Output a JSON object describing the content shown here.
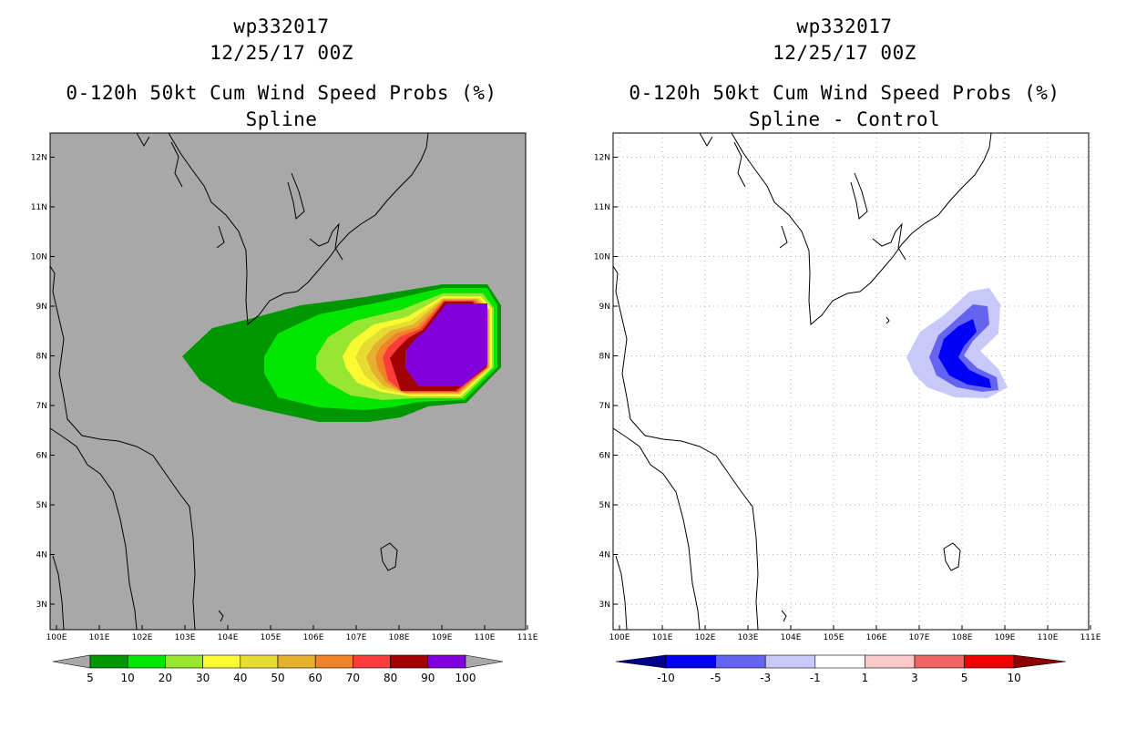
{
  "panels": [
    {
      "id": "left",
      "title_line1": "wp332017",
      "title_line2": "12/25/17 00Z",
      "title_line3": "0-120h 50kt Cum Wind Speed Probs (%)",
      "title_line4": "Spline",
      "map_background": "#a8a8a8",
      "gridlines": false,
      "colorbar": {
        "colors": [
          "#009600",
          "#00e600",
          "#96e632",
          "#fafa32",
          "#e6dc32",
          "#e6af2d",
          "#f08228",
          "#fa3c3c",
          "#a00000",
          "#8200dc"
        ],
        "left_arrow_color": "#a8a8a8",
        "right_arrow_color": "#a8a8a8",
        "labels": [
          "5",
          "10",
          "20",
          "30",
          "40",
          "50",
          "60",
          "70",
          "80",
          "90",
          "100"
        ]
      }
    },
    {
      "id": "right",
      "title_line1": "wp332017",
      "title_line2": "12/25/17 00Z",
      "title_line3": "0-120h 50kt Cum Wind Speed Probs (%)",
      "title_line4": "Spline - Control",
      "map_background": "#ffffff",
      "gridlines": true,
      "colorbar": {
        "colors": [
          "#0000f5",
          "#6464f0",
          "#c8c8fa",
          "#ffffff",
          "#fac8c8",
          "#f06464",
          "#f00000"
        ],
        "left_arrow_color": "#00008c",
        "right_arrow_color": "#8c0000",
        "labels": [
          "-10",
          "-5",
          "-3",
          "-1",
          "1",
          "3",
          "5",
          "10"
        ]
      }
    }
  ],
  "axes": {
    "lon_labels": [
      "100E",
      "101E",
      "102E",
      "103E",
      "104E",
      "105E",
      "106E",
      "107E",
      "108E",
      "109E",
      "110E",
      "111E"
    ],
    "lat_labels": [
      "3N",
      "4N",
      "5N",
      "6N",
      "7N",
      "8N",
      "9N",
      "10N",
      "11N",
      "12N"
    ]
  }
}
